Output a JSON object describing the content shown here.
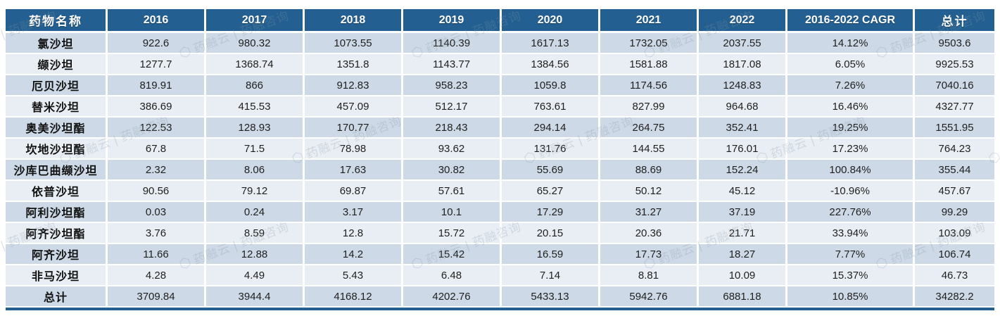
{
  "chart_data": {
    "type": "table",
    "columns": [
      "药物名称",
      "2016",
      "2017",
      "2018",
      "2019",
      "2020",
      "2021",
      "2022",
      "2016-2022 CAGR",
      "总计"
    ],
    "rows": [
      {
        "name": "氯沙坦",
        "values": [
          "922.6",
          "980.32",
          "1073.55",
          "1140.39",
          "1617.13",
          "1732.05",
          "2037.55",
          "14.12%",
          "9503.6"
        ]
      },
      {
        "name": "缬沙坦",
        "values": [
          "1277.7",
          "1368.74",
          "1351.8",
          "1143.77",
          "1384.56",
          "1581.88",
          "1817.08",
          "6.05%",
          "9925.53"
        ]
      },
      {
        "name": "厄贝沙坦",
        "values": [
          "819.91",
          "866",
          "912.83",
          "958.23",
          "1059.8",
          "1174.56",
          "1248.83",
          "7.26%",
          "7040.16"
        ]
      },
      {
        "name": "替米沙坦",
        "values": [
          "386.69",
          "415.53",
          "457.09",
          "512.17",
          "763.61",
          "827.99",
          "964.68",
          "16.46%",
          "4327.77"
        ]
      },
      {
        "name": "奥美沙坦酯",
        "values": [
          "122.53",
          "128.93",
          "170.77",
          "218.43",
          "294.14",
          "264.75",
          "352.41",
          "19.25%",
          "1551.95"
        ]
      },
      {
        "name": "坎地沙坦酯",
        "values": [
          "67.8",
          "71.5",
          "78.98",
          "93.62",
          "131.76",
          "144.55",
          "176.01",
          "17.23%",
          "764.23"
        ]
      },
      {
        "name": "沙库巴曲缬沙坦",
        "values": [
          "2.32",
          "8.06",
          "17.63",
          "30.82",
          "55.69",
          "88.69",
          "152.24",
          "100.84%",
          "355.44"
        ]
      },
      {
        "name": "依普沙坦",
        "values": [
          "90.56",
          "79.12",
          "69.87",
          "57.61",
          "65.27",
          "50.12",
          "45.12",
          "-10.96%",
          "457.67"
        ]
      },
      {
        "name": "阿利沙坦酯",
        "values": [
          "0.03",
          "0.24",
          "3.17",
          "10.1",
          "17.29",
          "31.27",
          "37.19",
          "227.76%",
          "99.29"
        ]
      },
      {
        "name": "阿齐沙坦酯",
        "values": [
          "3.76",
          "8.59",
          "12.8",
          "15.72",
          "20.15",
          "20.36",
          "21.71",
          "33.94%",
          "103.09"
        ]
      },
      {
        "name": "阿齐沙坦",
        "values": [
          "11.66",
          "12.88",
          "14.2",
          "15.42",
          "16.59",
          "17.73",
          "18.27",
          "7.77%",
          "106.74"
        ]
      },
      {
        "name": "非马沙坦",
        "values": [
          "4.28",
          "4.49",
          "5.43",
          "6.48",
          "7.14",
          "8.81",
          "10.09",
          "15.37%",
          "46.73"
        ]
      },
      {
        "name": "总计",
        "values": [
          "3709.84",
          "3944.4",
          "4168.12",
          "4202.76",
          "5433.13",
          "5942.76",
          "6881.18",
          "10.85%",
          "34282.2"
        ]
      }
    ]
  },
  "watermark": {
    "logo": "⬡",
    "text": "药融云 | 药融咨询"
  },
  "colors": {
    "header_bg": "#236091",
    "row_dark": "#CDD9E6",
    "row_light": "#E9EEF4",
    "watermark": "#8496A6"
  }
}
